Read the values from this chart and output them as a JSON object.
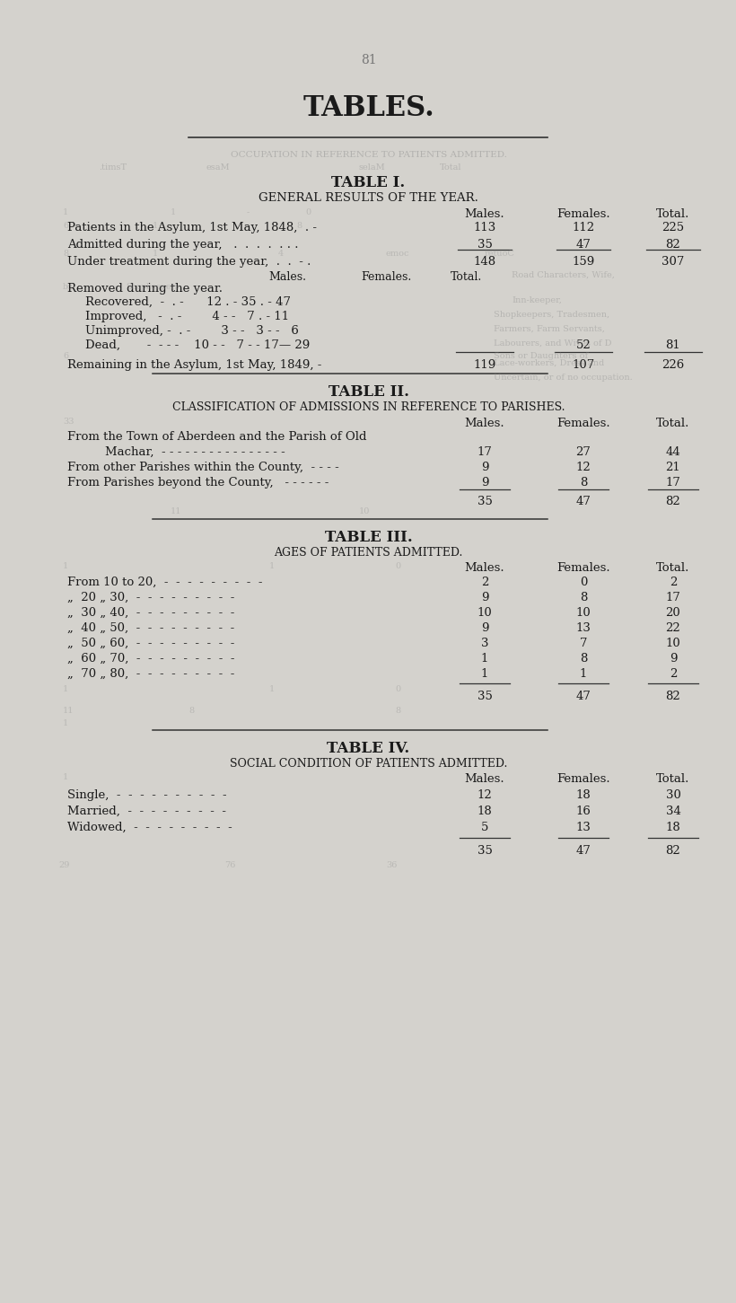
{
  "page_number": "81",
  "main_title": "TABLES.",
  "bg_color": "#d4d2cd",
  "text_color": "#1a1a1a",
  "ghost_color": "#8a8a8a",
  "table1_title": "TABLE I.",
  "table1_subtitle": "GENERAL RESULTS OF THE YEAR.",
  "table1_col_headers": [
    "Males.",
    "Females.",
    "Total."
  ],
  "table1_row1_label": "Patients in the Asylum, 1st May, 1848,  . -",
  "table1_row1_vals": [
    "113",
    "112",
    "225"
  ],
  "table1_row2_label": "Admitted during the year,   .  .  .  .  . . .",
  "table1_row2_vals": [
    "35",
    "47",
    "82"
  ],
  "table1_under_label": "Under treatment during the year,  .  .  - .",
  "table1_under_vals": [
    "148",
    "159",
    "307"
  ],
  "table1_sub_headers": [
    "Males.",
    "Females.",
    "Total."
  ],
  "table1_removed_label": "Removed during the year.",
  "table1_recovered": "Recovered,  -  . -      12 . - 35 . - 47",
  "table1_improved": "Improved,   -  . -        4 - -   7 . - 11",
  "table1_unimproved": "Unimproved, -  . -        3 - -   3 - -   6",
  "table1_dead": "Dead,       -  - - -    10 - -   7 - - 17— 29",
  "table1_dead_col2": "52",
  "table1_dead_col3": "81",
  "table1_remaining_label": "Remaining in the Asylum, 1st May, 1849, -",
  "table1_remaining_vals": [
    "119",
    "107",
    "226"
  ],
  "table2_title": "TABLE II.",
  "table2_subtitle": "CLASSIFICATION OF ADMISSIONS IN REFERENCE TO PARISHES.",
  "table2_col_headers": [
    "Males.",
    "Females.",
    "Total."
  ],
  "table2_row1a": "From the Town of Aberdeen and the Parish of Old",
  "table2_row1b": "    Machar,  - - - - - - - - - - - - - - - -",
  "table2_row1_vals": [
    "17",
    "27",
    "44"
  ],
  "table2_row2": "From other Parishes within the County,  - - - -",
  "table2_row2_vals": [
    "9",
    "12",
    "21"
  ],
  "table2_row3": "From Parishes beyond the County,   - - - - - -",
  "table2_row3_vals": [
    "9",
    "8",
    "17"
  ],
  "table2_totals": [
    "35",
    "47",
    "82"
  ],
  "table3_title": "TABLE III.",
  "table3_subtitle": "AGES OF PATIENTS ADMITTED.",
  "table3_col_headers": [
    "Males.",
    "Females.",
    "Total."
  ],
  "table3_rows": [
    [
      "From 10 to 20,  -  -  -  -  -  -  -  -  -",
      "2",
      "0",
      "2"
    ],
    [
      "„  20 „ 30,  -  -  -  -  -  -  -  -  -",
      "9",
      "8",
      "17"
    ],
    [
      "„  30 „ 40,  -  -  -  -  -  -  -  -  -",
      "10",
      "10",
      "20"
    ],
    [
      "„  40 „ 50,  -  -  -  -  -  -  -  -  -",
      "9",
      "13",
      "22"
    ],
    [
      "„  50 „ 60,  -  -  -  -  -  -  -  -  -",
      "3",
      "7",
      "10"
    ],
    [
      "„  60 „ 70,  -  -  -  -  -  -  -  -  -",
      "1",
      "8",
      "9"
    ],
    [
      "„  70 „ 80,  -  -  -  -  -  -  -  -  -",
      "1",
      "1",
      "2"
    ]
  ],
  "table3_totals": [
    "35",
    "47",
    "82"
  ],
  "table4_title": "TABLE IV.",
  "table4_subtitle": "SOCIAL CONDITION OF PATIENTS ADMITTED.",
  "table4_col_headers": [
    "Males.",
    "Females.",
    "Total."
  ],
  "table4_rows": [
    [
      "Single,  -  -  -  -  -  -  -  -  -  -",
      "12",
      "18",
      "30"
    ],
    [
      "Married,  -  -  -  -  -  -  -  -  -",
      "18",
      "16",
      "34"
    ],
    [
      "Widowed,  -  -  -  -  -  -  -  -  -",
      "5",
      "13",
      "18"
    ]
  ],
  "table4_totals": [
    "35",
    "47",
    "82"
  ]
}
